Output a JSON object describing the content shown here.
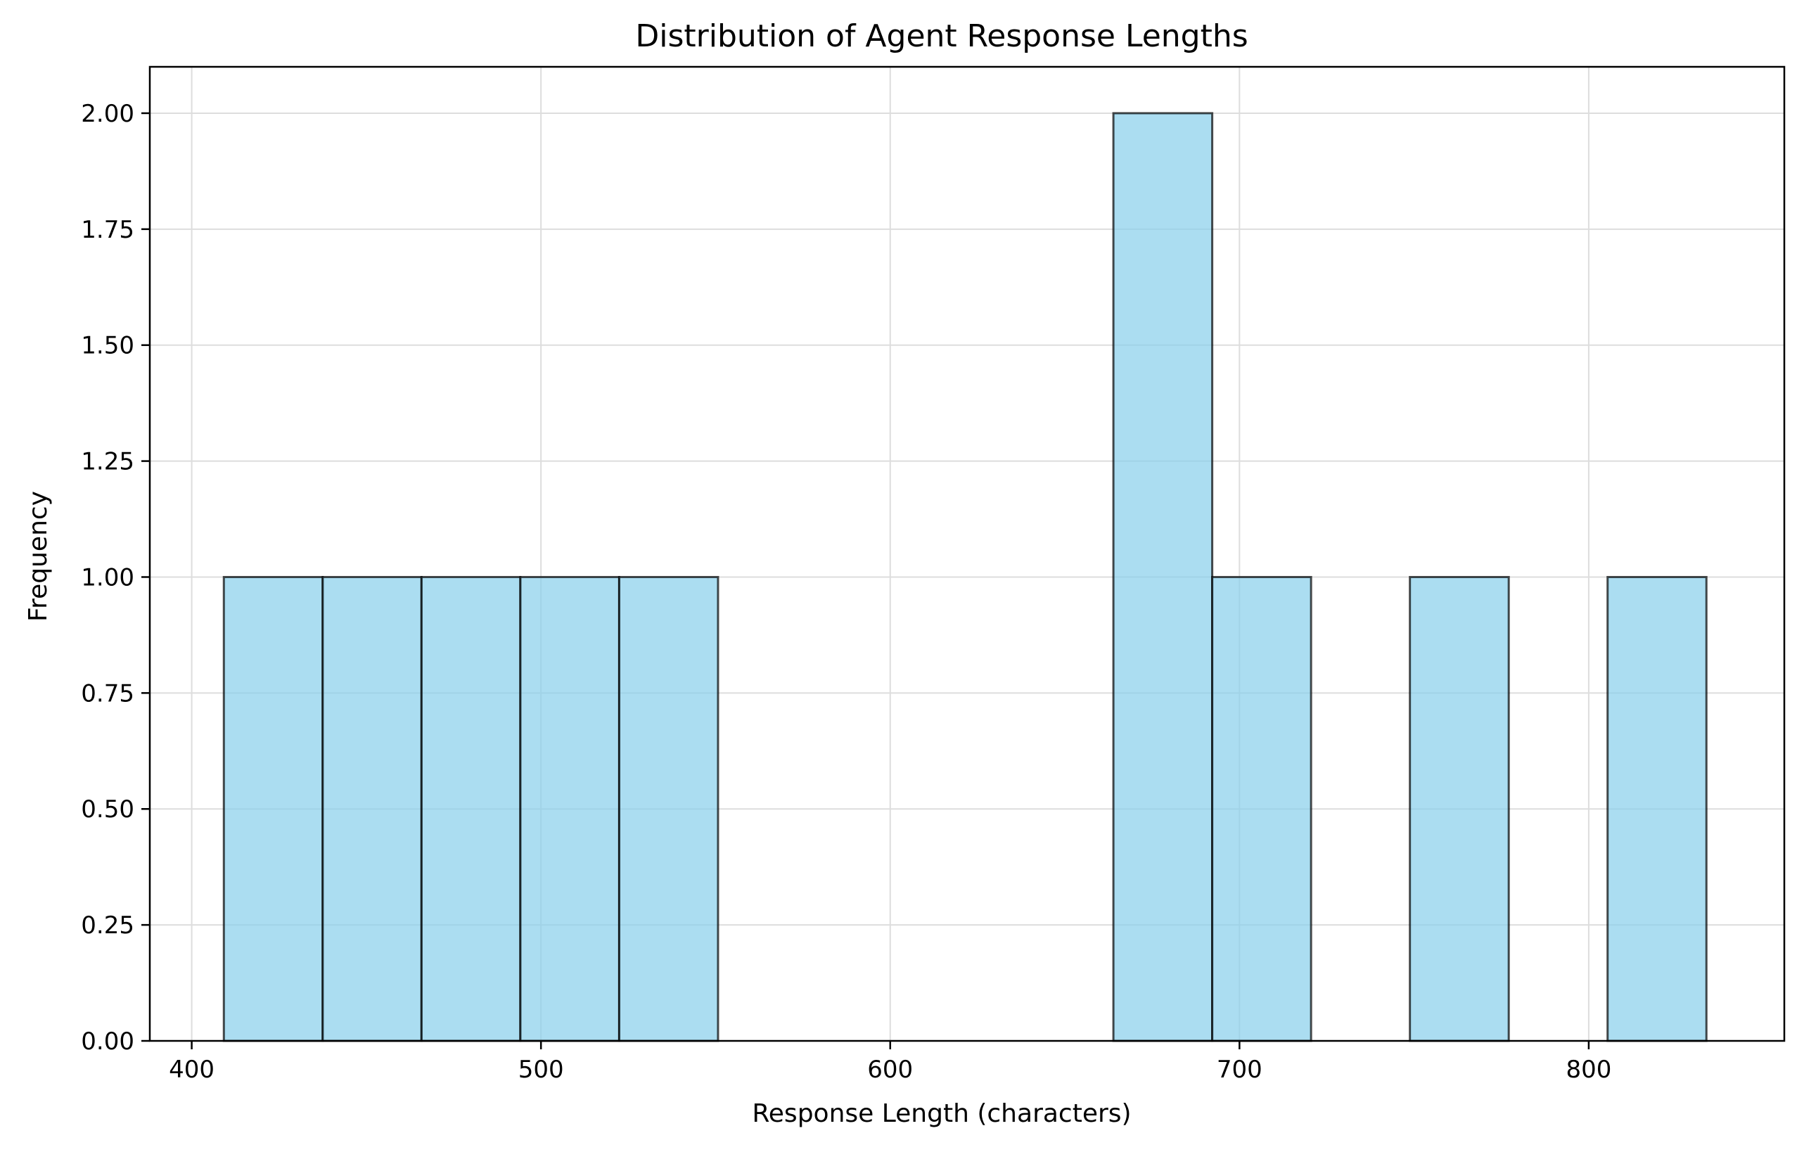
{
  "chart_data": {
    "type": "bar",
    "title": "Distribution of Agent Response Lengths",
    "xlabel": "Response Length (characters)",
    "ylabel": "Frequency",
    "xlim": [
      388,
      856
    ],
    "ylim": [
      0,
      2.1
    ],
    "xticks": [
      400,
      500,
      600,
      700,
      800
    ],
    "xtick_labels": [
      "400",
      "500",
      "600",
      "700",
      "800"
    ],
    "yticks": [
      0,
      0.25,
      0.5,
      0.75,
      1.0,
      1.25,
      1.5,
      1.75,
      2.0
    ],
    "ytick_labels": [
      "0.00",
      "0.25",
      "0.50",
      "0.75",
      "1.00",
      "1.25",
      "1.50",
      "1.75",
      "2.00"
    ],
    "grid": true,
    "bin_width": 28.3,
    "bins": [
      {
        "start": 409.2,
        "end": 437.5,
        "count": 1
      },
      {
        "start": 437.5,
        "end": 465.8,
        "count": 1
      },
      {
        "start": 465.8,
        "end": 494.1,
        "count": 1
      },
      {
        "start": 494.1,
        "end": 522.4,
        "count": 1
      },
      {
        "start": 522.4,
        "end": 550.7,
        "count": 1
      },
      {
        "start": 550.7,
        "end": 579.0,
        "count": 0
      },
      {
        "start": 579.0,
        "end": 607.3,
        "count": 0
      },
      {
        "start": 607.3,
        "end": 635.6,
        "count": 0
      },
      {
        "start": 635.6,
        "end": 663.9,
        "count": 0
      },
      {
        "start": 663.9,
        "end": 692.2,
        "count": 2
      },
      {
        "start": 692.2,
        "end": 720.5,
        "count": 1
      },
      {
        "start": 720.5,
        "end": 748.8,
        "count": 0
      },
      {
        "start": 748.8,
        "end": 777.1,
        "count": 1
      },
      {
        "start": 777.1,
        "end": 805.4,
        "count": 0
      },
      {
        "start": 805.4,
        "end": 833.7,
        "count": 1
      }
    ],
    "colors": {
      "bar_fill": "#87ceeb",
      "bar_edge": "#000000",
      "grid": "#dddddd",
      "axis": "#000000"
    }
  }
}
